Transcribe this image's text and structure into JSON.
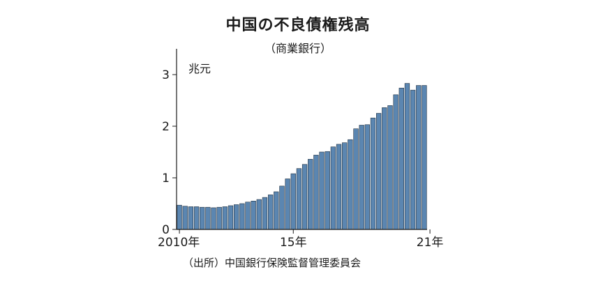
{
  "chart_data": {
    "type": "bar",
    "title": "中国の不良債権残高",
    "subtitle": "（商業銀行）",
    "unit_label": "兆元",
    "source": "（出所）中国銀行保険監督管理委員会",
    "ylim": [
      0,
      3.5
    ],
    "y_ticks": [
      0,
      1,
      2,
      3
    ],
    "x_tick_labels": [
      {
        "index": 0,
        "label": "2010年"
      },
      {
        "index": 20,
        "label": "15年"
      },
      {
        "index": 44,
        "label": "21年"
      }
    ],
    "grid": false,
    "bar_color": "#5b86b1",
    "bar_edge_color": "#1f2f3f",
    "values": [
      0.47,
      0.45,
      0.44,
      0.44,
      0.43,
      0.43,
      0.42,
      0.43,
      0.44,
      0.46,
      0.48,
      0.5,
      0.53,
      0.55,
      0.58,
      0.62,
      0.67,
      0.73,
      0.84,
      0.98,
      1.08,
      1.18,
      1.26,
      1.36,
      1.44,
      1.5,
      1.51,
      1.6,
      1.65,
      1.68,
      1.74,
      1.95,
      2.02,
      2.03,
      2.16,
      2.25,
      2.36,
      2.4,
      2.61,
      2.74,
      2.83,
      2.7,
      2.79,
      2.79
    ]
  }
}
